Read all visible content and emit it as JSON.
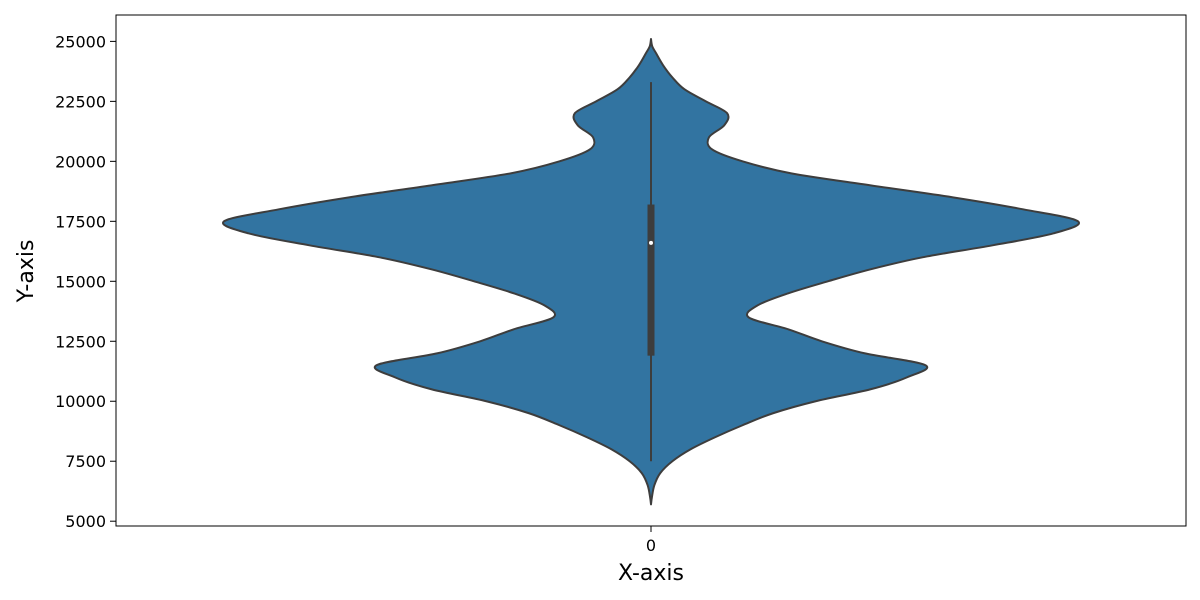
{
  "chart_data": {
    "type": "violin",
    "title": "",
    "xlabel": "X-axis",
    "ylabel": "Y-axis",
    "categories": [
      "0"
    ],
    "ylim": [
      4800,
      26100
    ],
    "yticks": [
      5000,
      7500,
      10000,
      12500,
      15000,
      17500,
      20000,
      22500,
      25000
    ],
    "ytick_labels": [
      "5000",
      "7500",
      "10000",
      "12500",
      "15000",
      "17500",
      "20000",
      "22500",
      "25000"
    ],
    "grid": false,
    "legend": "none",
    "colors": {
      "fill": "#3274a1",
      "edge": "#3d3d3d",
      "box": "#3d3d3d",
      "median": "#ffffff"
    },
    "violins": [
      {
        "category": "0",
        "density_profile": [
          [
            5700,
            0.0
          ],
          [
            6000,
            0.003
          ],
          [
            6500,
            0.011
          ],
          [
            7000,
            0.03
          ],
          [
            7500,
            0.07
          ],
          [
            8000,
            0.13
          ],
          [
            8500,
            0.21
          ],
          [
            9000,
            0.3
          ],
          [
            9500,
            0.4
          ],
          [
            10000,
            0.54
          ],
          [
            10500,
            0.72
          ],
          [
            11000,
            0.84
          ],
          [
            11500,
            0.9
          ],
          [
            12000,
            0.7
          ],
          [
            12500,
            0.56
          ],
          [
            13000,
            0.45
          ],
          [
            13500,
            0.32
          ],
          [
            14000,
            0.35
          ],
          [
            14500,
            0.45
          ],
          [
            15000,
            0.58
          ],
          [
            15500,
            0.72
          ],
          [
            16000,
            0.89
          ],
          [
            16500,
            1.12
          ],
          [
            17000,
            1.32
          ],
          [
            17500,
            1.4
          ],
          [
            18000,
            1.22
          ],
          [
            18500,
            0.99
          ],
          [
            19000,
            0.72
          ],
          [
            19500,
            0.46
          ],
          [
            20000,
            0.3
          ],
          [
            20500,
            0.2
          ],
          [
            21000,
            0.19
          ],
          [
            21500,
            0.24
          ],
          [
            22000,
            0.25
          ],
          [
            22500,
            0.18
          ],
          [
            23000,
            0.11
          ],
          [
            23500,
            0.07
          ],
          [
            24000,
            0.04
          ],
          [
            24500,
            0.017
          ],
          [
            24800,
            0.004
          ],
          [
            25100,
            0.0
          ]
        ],
        "whisker_low": 7500,
        "q1": 11900,
        "median": 16600,
        "q3": 18200,
        "whisker_high": 23300
      }
    ]
  }
}
